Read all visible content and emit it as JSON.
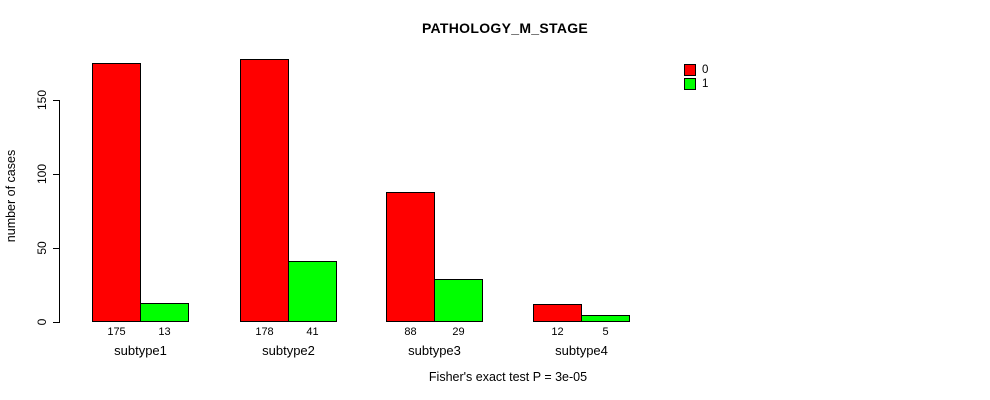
{
  "title": "PATHOLOGY_M_STAGE",
  "footer": "Fisher's exact test P = 3e-05",
  "legend": {
    "items": [
      {
        "label": "0",
        "color": "#FF0000"
      },
      {
        "label": "1",
        "color": "#00FF00"
      }
    ]
  },
  "chart_data": {
    "type": "bar",
    "title": "PATHOLOGY_M_STAGE",
    "categories": [
      "subtype1",
      "subtype2",
      "subtype3",
      "subtype4"
    ],
    "series": [
      {
        "name": "0",
        "color": "#FF0000",
        "values": [
          175,
          178,
          88,
          12
        ]
      },
      {
        "name": "1",
        "color": "#00FF00",
        "values": [
          13,
          41,
          29,
          5
        ]
      }
    ],
    "bar_value_labels": [
      [
        175,
        13
      ],
      [
        178,
        41
      ],
      [
        88,
        29
      ],
      [
        12,
        5
      ]
    ],
    "xlabel": "",
    "ylabel": "number of cases",
    "yticks": [
      0,
      50,
      100,
      150
    ],
    "ylim": [
      0,
      150
    ],
    "grid": false,
    "legend_position": "top-right",
    "annotation": "Fisher's exact test P = 3e-05"
  }
}
